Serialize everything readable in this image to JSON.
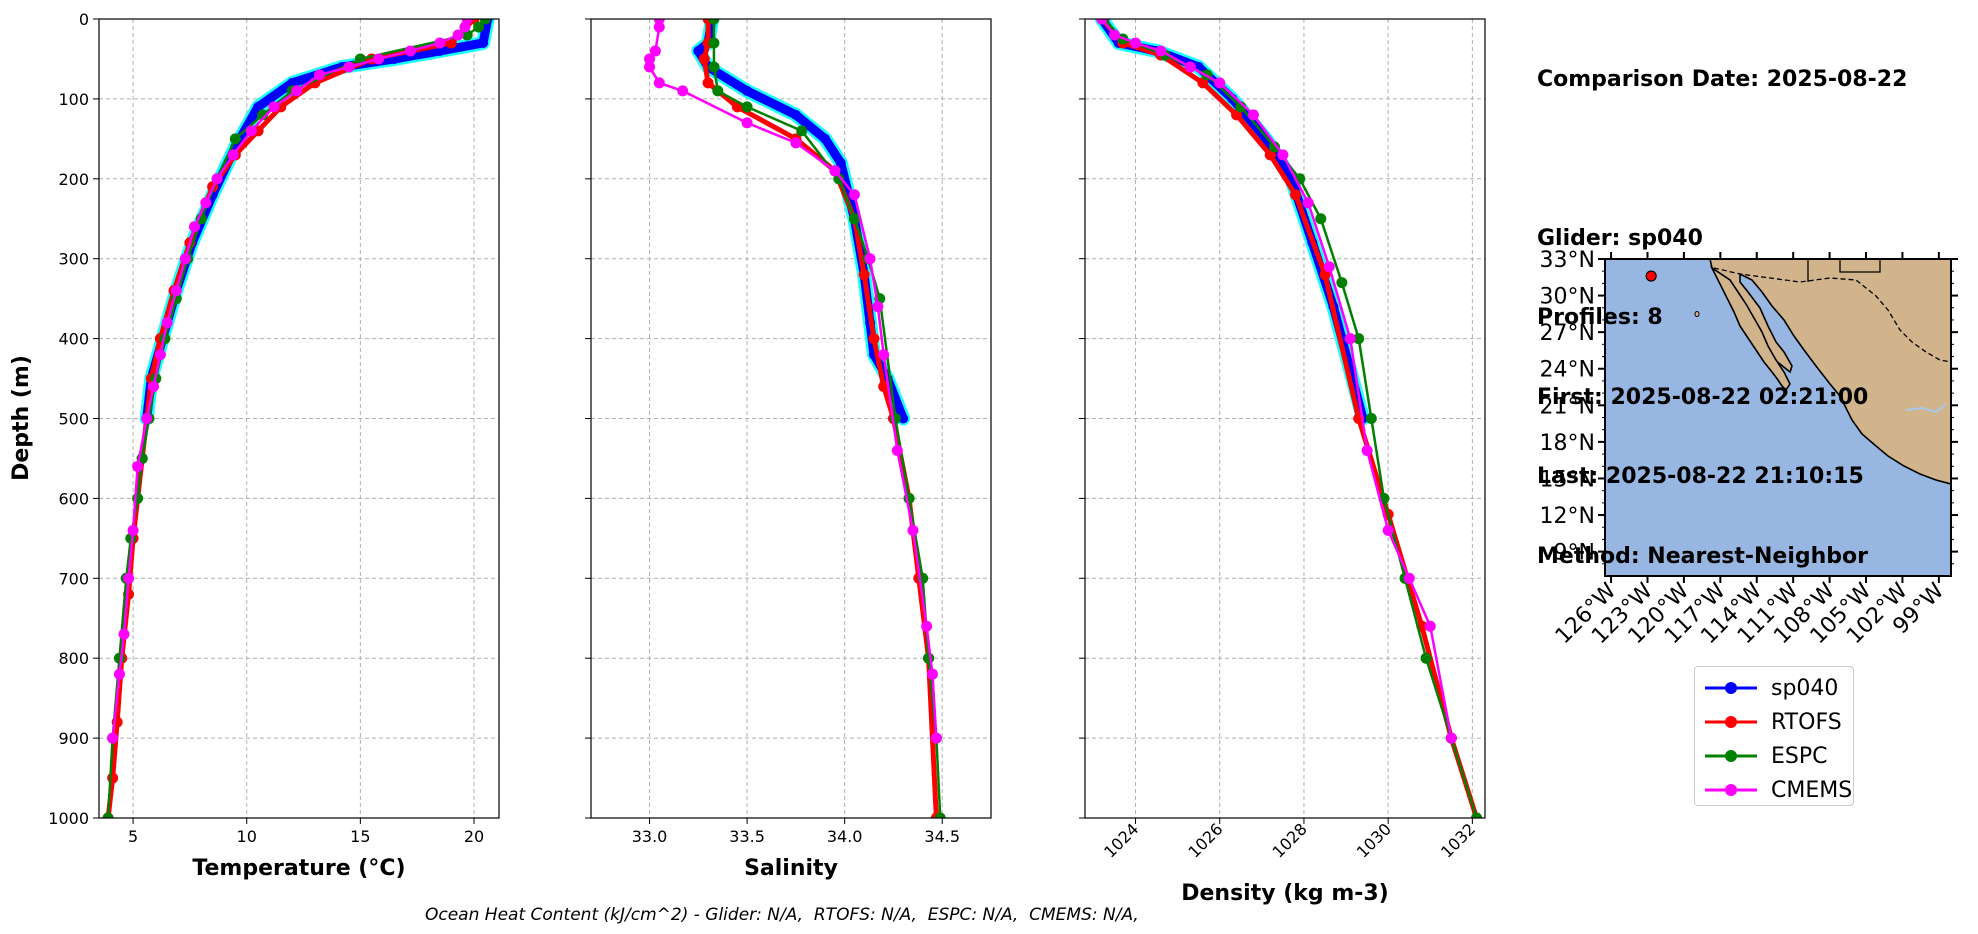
{
  "info": {
    "comparison_date": "Comparison Date: 2025-08-22",
    "glider": "Glider: sp040",
    "profiles": "Profiles: 8",
    "first": "First: 2025-08-22 02:21:00",
    "last": "Last: 2025-08-22 21:10:15",
    "method": "Method: Nearest-Neighbor"
  },
  "footer": "Ocean Heat Content (kJ/cm^2) - Glider: N/A,  RTOFS: N/A,  ESPC: N/A,  CMEMS: N/A,",
  "colors": {
    "sp040": "#0000ff",
    "sp040_profiles": "#00ffff",
    "RTOFS": "#ff0000",
    "ESPC": "#008000",
    "CMEMS": "#ff00ff",
    "ocean": "#97b6e1",
    "land": "#d2b48c"
  },
  "legend": [
    {
      "name": "sp040",
      "color": "#0000ff"
    },
    {
      "name": "RTOFS",
      "color": "#ff0000"
    },
    {
      "name": "ESPC",
      "color": "#008000"
    },
    {
      "name": "CMEMS",
      "color": "#ff00ff"
    }
  ],
  "chart_data": [
    {
      "type": "line",
      "xlabel": "Temperature (°C)",
      "ylabel": "Depth (m)",
      "xlim": [
        3.5,
        21.1
      ],
      "ylim": [
        1000,
        0
      ],
      "xticks": [
        5,
        10,
        15,
        20
      ],
      "yticks": [
        0,
        100,
        200,
        300,
        400,
        500,
        600,
        700,
        800,
        900,
        1000
      ],
      "grid": true,
      "series": [
        {
          "name": "sp040",
          "x": [
            20.6,
            20.4,
            18.5,
            16.5,
            14.2,
            12.0,
            10.5,
            9.5,
            8.5,
            7.6,
            6.9,
            6.3,
            5.8,
            5.6
          ],
          "y": [
            0,
            30,
            40,
            50,
            60,
            80,
            110,
            160,
            220,
            280,
            340,
            400,
            450,
            500
          ]
        },
        {
          "name": "RTOFS",
          "x": [
            20.0,
            19.0,
            15.5,
            13.0,
            11.5,
            10.5,
            9.5,
            8.5,
            7.5,
            6.8,
            6.2,
            5.8,
            5.4,
            5.0,
            4.8,
            4.5,
            4.3,
            4.1,
            3.9
          ],
          "y": [
            0,
            30,
            50,
            80,
            110,
            140,
            170,
            210,
            280,
            340,
            400,
            450,
            550,
            650,
            720,
            800,
            880,
            950,
            1000
          ]
        },
        {
          "name": "ESPC",
          "x": [
            20.5,
            20.2,
            19.7,
            15.0,
            12.0,
            10.7,
            9.5,
            8.7,
            8.0,
            7.4,
            6.9,
            6.4,
            6.0,
            5.7,
            5.4,
            5.2,
            4.9,
            4.7,
            4.4,
            4.1,
            3.9
          ],
          "y": [
            0,
            10,
            20,
            50,
            90,
            120,
            150,
            200,
            250,
            300,
            350,
            400,
            450,
            500,
            550,
            600,
            650,
            700,
            800,
            900,
            1000
          ]
        },
        {
          "name": "CMEMS",
          "x": [
            19.7,
            19.6,
            19.3,
            18.5,
            17.2,
            15.8,
            14.5,
            13.2,
            12.2,
            11.2,
            10.2,
            9.4,
            8.7,
            8.2,
            7.7,
            7.3,
            6.9,
            6.5,
            6.2,
            5.9,
            5.6,
            5.2,
            5.0,
            4.8,
            4.6,
            4.4,
            4.1
          ],
          "y": [
            0,
            10,
            20,
            30,
            40,
            50,
            60,
            70,
            90,
            110,
            140,
            170,
            200,
            230,
            260,
            300,
            340,
            380,
            420,
            460,
            500,
            560,
            640,
            700,
            770,
            820,
            900
          ]
        }
      ]
    },
    {
      "type": "line",
      "xlabel": "Salinity",
      "ylabel": "",
      "xlim": [
        32.7,
        34.75
      ],
      "ylim": [
        1000,
        0
      ],
      "xticks": [
        33.0,
        33.5,
        34.0,
        34.5
      ],
      "grid": true,
      "series": [
        {
          "name": "sp040",
          "x": [
            33.32,
            33.3,
            33.25,
            33.3,
            33.5,
            33.75,
            33.9,
            33.98,
            34.05,
            34.1,
            34.13,
            34.15,
            34.22,
            34.3
          ],
          "y": [
            0,
            30,
            40,
            60,
            90,
            120,
            150,
            180,
            250,
            320,
            380,
            420,
            450,
            500
          ]
        },
        {
          "name": "RTOFS",
          "x": [
            33.3,
            33.3,
            33.28,
            33.3,
            33.45,
            33.75,
            33.95,
            34.05,
            34.1,
            34.15,
            34.2,
            34.25,
            34.33,
            34.38,
            34.43,
            34.47
          ],
          "y": [
            0,
            30,
            50,
            80,
            110,
            150,
            190,
            250,
            320,
            400,
            460,
            500,
            600,
            700,
            800,
            1000
          ]
        },
        {
          "name": "ESPC",
          "x": [
            33.33,
            33.33,
            33.33,
            33.35,
            33.5,
            33.78,
            33.97,
            34.05,
            34.12,
            34.18,
            34.26,
            34.33,
            34.4,
            34.43,
            34.47,
            34.49
          ],
          "y": [
            0,
            30,
            60,
            90,
            110,
            140,
            200,
            250,
            300,
            350,
            500,
            600,
            700,
            800,
            900,
            1000
          ]
        },
        {
          "name": "CMEMS",
          "x": [
            33.05,
            33.05,
            33.03,
            33.0,
            33.0,
            33.05,
            33.17,
            33.5,
            33.75,
            33.95,
            34.05,
            34.13,
            34.17,
            34.2,
            34.27,
            34.35,
            34.42,
            34.45,
            34.47
          ],
          "y": [
            0,
            10,
            40,
            50,
            60,
            80,
            90,
            130,
            155,
            190,
            220,
            300,
            360,
            420,
            540,
            640,
            760,
            820,
            900
          ]
        }
      ]
    },
    {
      "type": "line",
      "xlabel": "Density (kg m-3)",
      "ylabel": "",
      "xlim": [
        1022.8,
        1032.3
      ],
      "ylim": [
        1000,
        0
      ],
      "xticks": [
        1024,
        1026,
        1028,
        1030,
        1032
      ],
      "grid": true,
      "series": [
        {
          "name": "sp040",
          "x": [
            1023.2,
            1023.6,
            1024.5,
            1025.5,
            1026.3,
            1027.1,
            1027.7,
            1028.2,
            1028.7,
            1029.1,
            1029.4
          ],
          "y": [
            0,
            30,
            40,
            60,
            100,
            150,
            200,
            280,
            360,
            440,
            500
          ]
        },
        {
          "name": "RTOFS",
          "x": [
            1023.2,
            1023.7,
            1024.6,
            1025.6,
            1026.4,
            1027.2,
            1027.8,
            1028.5,
            1029.3,
            1030.0,
            1030.8,
            1031.5,
            1032.1
          ],
          "y": [
            0,
            30,
            45,
            80,
            120,
            170,
            220,
            320,
            500,
            620,
            760,
            900,
            1000
          ]
        },
        {
          "name": "ESPC",
          "x": [
            1023.25,
            1023.7,
            1024.7,
            1025.7,
            1026.5,
            1027.3,
            1027.9,
            1028.4,
            1028.9,
            1029.3,
            1029.6,
            1029.9,
            1030.4,
            1030.9,
            1031.5,
            1032.1
          ],
          "y": [
            0,
            25,
            45,
            70,
            110,
            160,
            200,
            250,
            330,
            400,
            500,
            600,
            700,
            800,
            900,
            1000
          ]
        },
        {
          "name": "CMEMS",
          "x": [
            1023.2,
            1023.5,
            1024.0,
            1024.6,
            1025.3,
            1026.0,
            1026.8,
            1027.5,
            1028.1,
            1028.6,
            1029.1,
            1029.5,
            1030.0,
            1030.5,
            1031.0,
            1031.5
          ],
          "y": [
            0,
            20,
            30,
            40,
            60,
            80,
            120,
            170,
            230,
            310,
            400,
            540,
            640,
            700,
            760,
            900
          ]
        }
      ]
    },
    {
      "type": "map",
      "lat_ticks": [
        "33°N",
        "30°N",
        "27°N",
        "24°N",
        "21°N",
        "18°N",
        "15°N",
        "12°N",
        "9°N"
      ],
      "lon_ticks": [
        "126°W",
        "123°W",
        "120°W",
        "117°W",
        "114°W",
        "111°W",
        "108°W",
        "105°W",
        "102°W",
        "99°W"
      ],
      "lat_range": [
        7,
        33
      ],
      "lon_range": [
        -126.5,
        -98
      ],
      "glider_position": {
        "lat": 31.6,
        "lon": -122.7
      }
    }
  ]
}
